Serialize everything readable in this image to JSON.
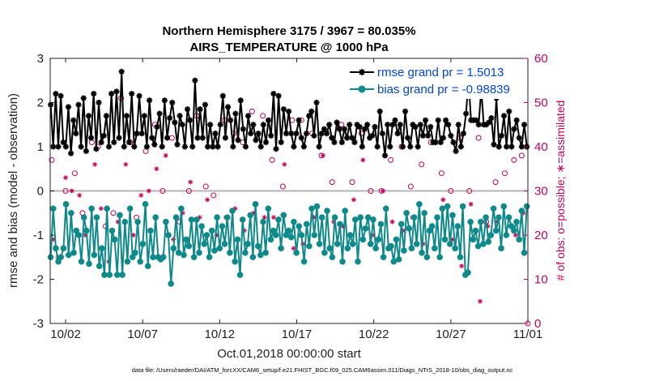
{
  "chart_data": {
    "type": "line",
    "title": "Northern Hemisphere 3175 / 3967 = 80.035%",
    "subtitle": "AIRS_TEMPERATURE @ 1000 hPa",
    "xlabel": "Oct.01,2018 00:00:00 start",
    "ylabel": "rmse and bias (model - observation)",
    "ylabel_right": "# of obs: o=possible; ∗=assimilated",
    "xlim": [
      0,
      31
    ],
    "ylim": [
      -3,
      3
    ],
    "ylim_right": [
      0,
      60
    ],
    "x_ticks": [
      1,
      6,
      11,
      16,
      21,
      26,
      31
    ],
    "x_tick_labels": [
      "10/02",
      "10/07",
      "10/12",
      "10/17",
      "10/22",
      "10/27",
      "11/01"
    ],
    "y_ticks": [
      -3,
      -2,
      -1,
      0,
      1,
      2,
      3
    ],
    "y_tick_labels": [
      "-3",
      "-2",
      "-1",
      "0",
      "1",
      "2",
      "3"
    ],
    "y_ticks_right": [
      0,
      10,
      20,
      30,
      40,
      50,
      60
    ],
    "y_tick_labels_right": [
      "0",
      "10",
      "20",
      "30",
      "40",
      "50",
      "60"
    ],
    "zero_line": 0,
    "legend_position": "top-right",
    "series": [
      {
        "name": "rmse grand pr = 1.5013",
        "axis": "left",
        "color": "#000000",
        "marker": "asterisk",
        "values": [
          1.95,
          1.0,
          2.2,
          1.0,
          2.15,
          1.1,
          1.0,
          1.9,
          0.85,
          1.6,
          1.3,
          1.95,
          1.0,
          2.1,
          0.9,
          1.7,
          1.2,
          2.2,
          0.95,
          2.0,
          1.1,
          1.25,
          1.7,
          1.0,
          2.2,
          1.1,
          2.25,
          1.2,
          2.7,
          1.0,
          1.7,
          1.1,
          2.2,
          1.0,
          1.3,
          2.15,
          1.3,
          1.7,
          1.0,
          2.05,
          1.2,
          1.05,
          1.45,
          1.75,
          1.0,
          2.05,
          1.2,
          1.65,
          2.0,
          1.55,
          1.05,
          1.7,
          1.5,
          1.0,
          1.85,
          1.6,
          1.0,
          2.5,
          1.2,
          1.85,
          1.2,
          1.95,
          1.0,
          1.5,
          1.0,
          1.3,
          1.0,
          1.5,
          2.15,
          1.2,
          1.9,
          1.6,
          1.0,
          1.75,
          1.15,
          2.05,
          1.4,
          1.0,
          1.7,
          1.3,
          1.5,
          1.15,
          1.3,
          1.0,
          1.5,
          1.1,
          1.6,
          1.25,
          2.2,
          0.95,
          2.15,
          1.1,
          1.85,
          1.3,
          1.8,
          1.3,
          1.0,
          1.3,
          1.6,
          1.2,
          1.0,
          1.3,
          1.7,
          1.8,
          1.25,
          2.0,
          1.0,
          1.3,
          1.4,
          1.3,
          1.5,
          1.2,
          1.1,
          1.55,
          1.4,
          1.1,
          1.4,
          1.2,
          1.5,
          1.2,
          1.1,
          1.5,
          1.45,
          1.0,
          1.4,
          1.5,
          1.2,
          1.25,
          1.45,
          1.0,
          1.8,
          1.3,
          0.8,
          1.5,
          1.0,
          1.5,
          1.6,
          1.3,
          1.5,
          1.0,
          1.8,
          1.2,
          1.0,
          1.5,
          1.45,
          1.0,
          1.5,
          1.25,
          1.6,
          1.25,
          1.45,
          1.1,
          1.1,
          1.6,
          1.1,
          1.2,
          1.6,
          1.5,
          1.25,
          1.1,
          0.9,
          1.5,
          1.0,
          1.3,
          1.75,
          2.5,
          1.6,
          1.6,
          1.6,
          1.5,
          2.3,
          1.5,
          1.5,
          1.55,
          1.65,
          1.05,
          2.1,
          1.0,
          1.25,
          1.7,
          1.0,
          1.8,
          1.0,
          1.4,
          1.6,
          1.2,
          1.0,
          1.5,
          1.0
        ]
      },
      {
        "name": "bias grand pr = -0.98839",
        "axis": "left",
        "color": "#0e8a8a",
        "marker": "circle",
        "values": [
          -1.5,
          -0.4,
          -1.3,
          -1.6,
          -1.5,
          -1.3,
          -0.3,
          -1.45,
          -0.5,
          -1.4,
          -0.9,
          -1.0,
          -1.6,
          -0.6,
          -0.9,
          -1.65,
          -0.4,
          -1.45,
          -0.6,
          -1.7,
          -1.3,
          -1.9,
          -0.4,
          -1.9,
          -0.9,
          -1.1,
          -1.9,
          -0.55,
          -1.9,
          -0.7,
          -1.6,
          -0.4,
          -1.5,
          -1.4,
          -0.7,
          -1.6,
          -1.2,
          -0.3,
          -1.7,
          -0.9,
          -1.5,
          -0.6,
          -1.5,
          -1.55,
          -1.5,
          -0.7,
          -1.0,
          -2.1,
          -1.3,
          -0.6,
          -1.4,
          -0.4,
          -1.45,
          -1.1,
          -1.25,
          -0.65,
          -1.5,
          -0.65,
          -1.4,
          -0.8,
          -1.2,
          -1.0,
          -1.5,
          -0.9,
          -1.35,
          -0.6,
          -1.3,
          -0.8,
          -1.2,
          -0.6,
          -1.4,
          -0.45,
          -1.6,
          -1.1,
          -1.9,
          -0.65,
          -1.4,
          -1.2,
          -0.55,
          -1.5,
          -0.3,
          -1.25,
          -1.45,
          -0.7,
          -1.4,
          -0.4,
          -1.1,
          -0.9,
          -1.0,
          -0.65,
          -1.3,
          -0.55,
          -1.0,
          -0.9,
          -1.05,
          -0.7,
          -1.4,
          -0.8,
          -1.0,
          -1.6,
          -0.75,
          -1.25,
          -0.4,
          -1.0,
          -0.35,
          -1.2,
          -0.6,
          -1.4,
          -0.45,
          -1.3,
          -1.5,
          -0.6,
          -1.2,
          -0.75,
          -1.6,
          -0.45,
          -1.3,
          -1.0,
          -1.2,
          -0.65,
          -1.6,
          -0.6,
          -1.1,
          -0.85,
          -0.6,
          -1.2,
          -0.65,
          -1.3,
          -1.1,
          -0.75,
          -1.5,
          -0.4,
          -1.3,
          -1.25,
          -1.6,
          -1.1,
          -1.55,
          -0.75,
          -1.35,
          -0.5,
          -0.85,
          -1.3,
          -0.6,
          -1.2,
          -0.3,
          -1.4,
          -0.5,
          -1.5,
          -0.9,
          -0.8,
          -1.3,
          -0.6,
          -1.5,
          -0.4,
          -1.1,
          -0.35,
          -1.2,
          -0.55,
          -1.3,
          -0.8,
          -1.5,
          -0.35,
          -1.9,
          -1.85,
          -0.7,
          -1.1,
          -0.9,
          -1.25,
          -0.7,
          -1.2,
          -0.6,
          -1.15,
          -1.0,
          -0.4,
          -0.9,
          -0.6,
          -1.3,
          -0.35,
          -1.0,
          -0.6,
          -0.8,
          -0.9,
          -0.7,
          -1.1,
          -0.45,
          -1.4,
          -0.35
        ]
      },
      {
        "name": "possible observations (o)",
        "axis": "right",
        "color": "#c8005a",
        "marker": "open-circle",
        "x": [
          0.1,
          1,
          1.6,
          2.1,
          2.7,
          3.1,
          3.6,
          4.1,
          4.6,
          5.2,
          5.6,
          6.2,
          6.8,
          7.3,
          7.9,
          8.4,
          9,
          9.5,
          10.1,
          10.6,
          11.3,
          11.9,
          12.5,
          13.1,
          13.8,
          14.4,
          15.1,
          15.7,
          16.3,
          17,
          17.6,
          18.3,
          18.9,
          19.6,
          20.2,
          20.8,
          21.5,
          22.1,
          22.8,
          23.4,
          24.1,
          24.7,
          25.4,
          26,
          26.6,
          27.2,
          27.8,
          28.3,
          28.9,
          29.5,
          30.1,
          30.6
        ],
        "values": [
          37,
          30,
          34,
          25,
          41,
          40,
          22,
          25,
          51,
          41,
          24,
          39,
          45,
          30,
          42,
          23,
          30,
          47,
          31,
          29,
          46,
          43,
          41,
          48,
          47,
          37,
          31,
          46,
          46,
          43,
          38,
          32,
          45,
          32,
          43,
          30,
          30,
          37,
          40,
          31,
          36,
          41,
          34,
          30,
          42,
          30,
          42,
          23,
          32,
          34,
          37,
          38
        ]
      },
      {
        "name": "assimilated observations (∗)",
        "axis": "right",
        "color": "#c8005a",
        "marker": "asterisk",
        "x": [
          0.2,
          0.5,
          1,
          1.4,
          1.9,
          2.3,
          2.9,
          3.3,
          3.8,
          4.4,
          4.9,
          5.4,
          5.9,
          6.4,
          6.9,
          7.5,
          8,
          8.6,
          9.1,
          9.7,
          10.2,
          10.8,
          11.4,
          12,
          12.6,
          13.2,
          13.9,
          14.5,
          15.2,
          15.8,
          16.4,
          17.1,
          17.7,
          18.4,
          19,
          19.7,
          20.3,
          20.9,
          21.6,
          22.2,
          22.9,
          23.5,
          24.2,
          24.8,
          25.5,
          26.1,
          26.7,
          27.3,
          27.9,
          28.4,
          29,
          29.6,
          30.2,
          30.7
        ],
        "values": [
          19,
          15,
          33,
          30,
          29,
          20,
          36,
          26,
          14,
          23,
          36,
          20,
          29,
          30,
          35,
          38,
          19,
          25,
          32,
          24,
          28,
          20,
          24,
          26,
          21,
          25,
          24,
          24,
          36,
          17,
          18,
          24,
          38,
          23,
          22,
          28,
          37,
          20,
          30,
          23,
          21,
          24,
          18,
          22,
          28,
          19,
          13,
          27,
          5,
          22,
          23,
          20,
          20,
          25
        ]
      }
    ],
    "footnote": "data file: /Users/raeder/DAI/ATM_forcXX/CAM6_setup/f.e21.FHIST_BGC.f09_025.CAM6assim.011/Diags_NTrS_2018-10/obs_diag_output.nc"
  }
}
